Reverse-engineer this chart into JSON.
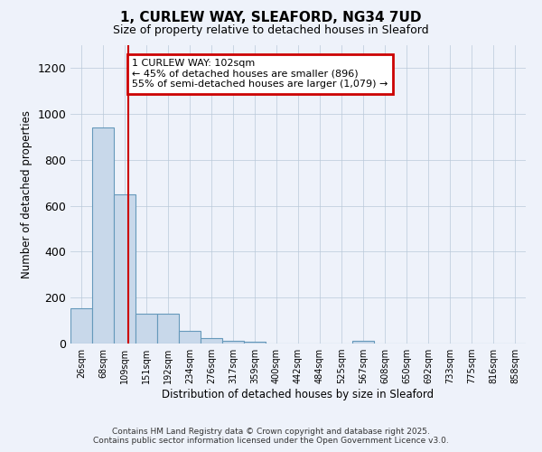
{
  "title1": "1, CURLEW WAY, SLEAFORD, NG34 7UD",
  "title2": "Size of property relative to detached houses in Sleaford",
  "xlabel": "Distribution of detached houses by size in Sleaford",
  "ylabel": "Number of detached properties",
  "bin_labels": [
    "26sqm",
    "68sqm",
    "109sqm",
    "151sqm",
    "192sqm",
    "234sqm",
    "276sqm",
    "317sqm",
    "359sqm",
    "400sqm",
    "442sqm",
    "484sqm",
    "525sqm",
    "567sqm",
    "608sqm",
    "650sqm",
    "692sqm",
    "733sqm",
    "775sqm",
    "816sqm",
    "858sqm"
  ],
  "bar_heights": [
    155,
    940,
    650,
    130,
    130,
    55,
    25,
    13,
    8,
    0,
    0,
    0,
    0,
    10,
    0,
    0,
    0,
    0,
    0,
    0,
    0
  ],
  "bar_color": "#c8d8ea",
  "bar_edge_color": "#6699bb",
  "background_color": "#eef2fa",
  "red_line_x": 2.65,
  "annotation_text": "1 CURLEW WAY: 102sqm\n← 45% of detached houses are smaller (896)\n55% of semi-detached houses are larger (1,079) →",
  "annotation_box_color": "#ffffff",
  "annotation_border_color": "#cc0000",
  "ylim": [
    0,
    1300
  ],
  "yticks": [
    0,
    200,
    400,
    600,
    800,
    1000,
    1200
  ],
  "footer1": "Contains HM Land Registry data © Crown copyright and database right 2025.",
  "footer2": "Contains public sector information licensed under the Open Government Licence v3.0."
}
